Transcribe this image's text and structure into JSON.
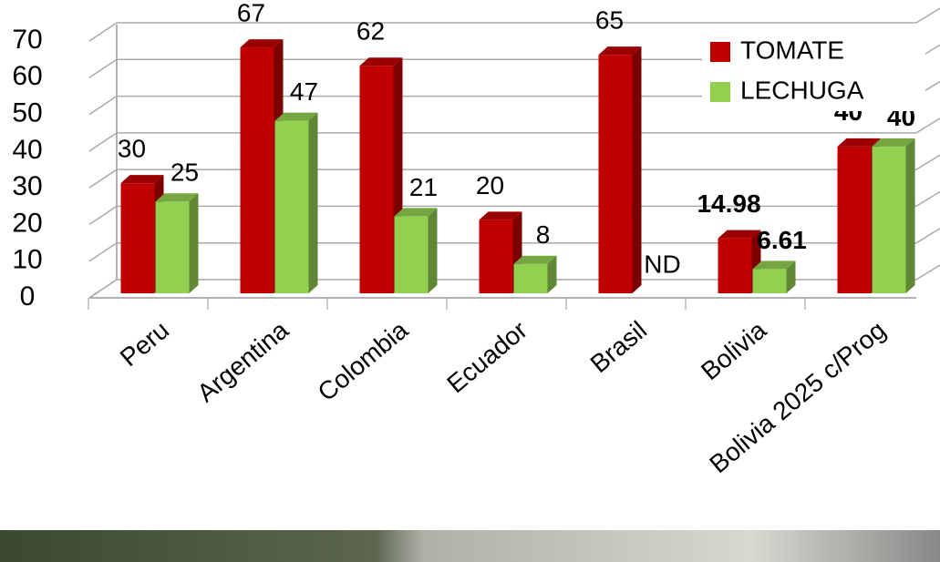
{
  "chart_data": {
    "type": "bar3d",
    "categories": [
      "Peru",
      "Argentina",
      "Colombia",
      "Ecuador",
      "Brasil",
      "Bolivia",
      "Bolivia 2025 c/Prog"
    ],
    "series": [
      {
        "name": "TOMATE",
        "color": "#c00000",
        "values": [
          30,
          67,
          62,
          20,
          65,
          14.98,
          40
        ],
        "label_colors": [
          "#000000",
          "#000000",
          "#000000",
          "#000000",
          "#000000",
          "#c00000",
          "#000000"
        ],
        "label_weights": [
          "normal",
          "normal",
          "normal",
          "normal",
          "normal",
          "bold",
          "bold"
        ]
      },
      {
        "name": "LECHUGA",
        "color": "#92d050",
        "values": [
          25,
          47,
          21,
          8,
          null,
          6.61,
          40
        ],
        "value_labels": [
          "25",
          "47",
          "21",
          "8",
          "ND",
          "6.61",
          "40"
        ],
        "label_colors": [
          "#000000",
          "#000000",
          "#000000",
          "#000000",
          "#000000",
          "#c00000",
          "#000000"
        ],
        "label_weights": [
          "normal",
          "normal",
          "normal",
          "normal",
          "normal",
          "bold",
          "bold"
        ]
      }
    ],
    "ylim": [
      0,
      70
    ],
    "yticks": [
      0,
      10,
      20,
      30,
      40,
      50,
      60,
      70
    ],
    "grid": true,
    "legend": "top-right"
  }
}
